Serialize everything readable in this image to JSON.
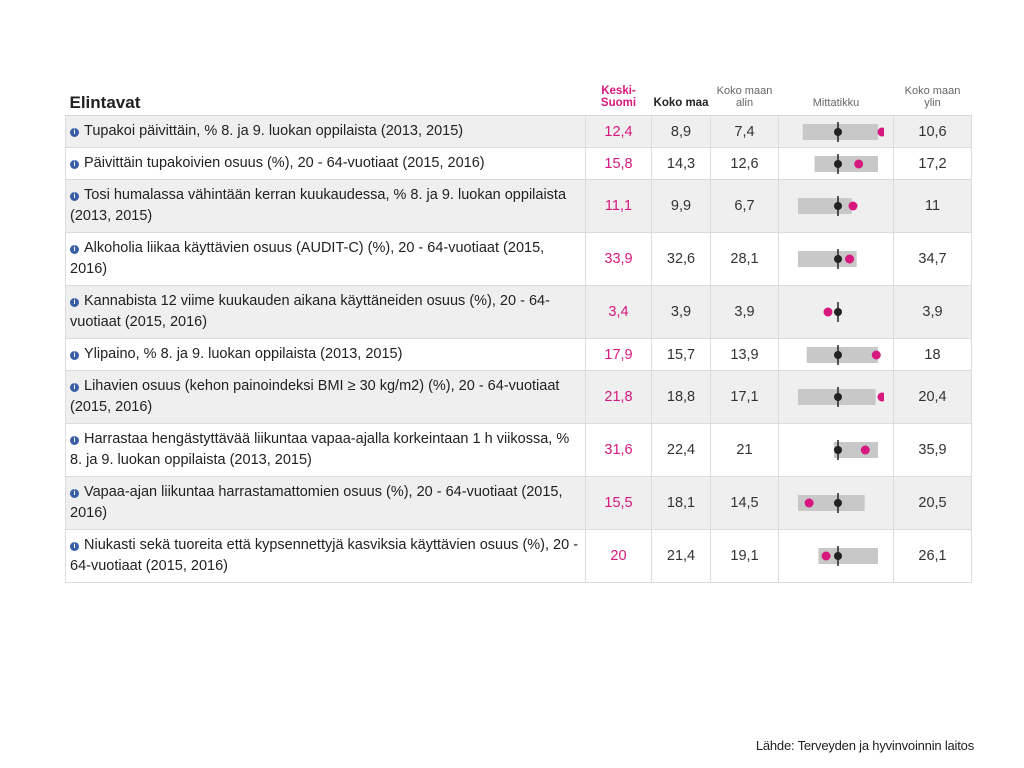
{
  "table": {
    "title": "Elintavat",
    "headers": {
      "region": "Keski-Suomi",
      "country": "Koko maa",
      "min": "Koko maan alin",
      "gauge": "Mittatikku",
      "max": "Koko maan ylin"
    },
    "info_icon": "info-icon"
  },
  "colors": {
    "region": "#d6187f",
    "country": "#222222",
    "gauge_bar": "#c8c8c8"
  },
  "chart_data": {
    "type": "table",
    "title": "Elintavat",
    "columns": [
      "Keski-Suomi",
      "Koko maa",
      "Koko maan alin",
      "Mittatikku",
      "Koko maan ylin"
    ],
    "rows": [
      {
        "label": "Tupakoi päivittäin, % 8. ja 9. luokan oppilaista (2013, 2015)",
        "region": "12,4",
        "country": "8,9",
        "min": "7,4",
        "max": "10,6",
        "region_v": 12.4,
        "country_v": 8.9,
        "min_v": 7.4,
        "max_v": 10.6
      },
      {
        "label": "Päivittäin tupakoivien osuus (%), 20 - 64-vuotiaat (2015, 2016)",
        "region": "15,8",
        "country": "14,3",
        "min": "12,6",
        "max": "17,2",
        "region_v": 15.8,
        "country_v": 14.3,
        "min_v": 12.6,
        "max_v": 17.2
      },
      {
        "label": "Tosi humalassa vähintään kerran kuukaudessa, % 8. ja 9. luokan oppilaista (2013, 2015)",
        "region": "11,1",
        "country": "9,9",
        "min": "6,7",
        "max": "11",
        "region_v": 11.1,
        "country_v": 9.9,
        "min_v": 6.7,
        "max_v": 11
      },
      {
        "label": "Alkoholia liikaa käyttävien osuus (AUDIT-C) (%), 20 - 64-vuotiaat (2015, 2016)",
        "region": "33,9",
        "country": "32,6",
        "min": "28,1",
        "max": "34,7",
        "region_v": 33.9,
        "country_v": 32.6,
        "min_v": 28.1,
        "max_v": 34.7
      },
      {
        "label": "Kannabista 12 viime kuukauden aikana käyttäneiden osuus (%), 20 - 64-vuotiaat (2015, 2016)",
        "region": "3,4",
        "country": "3,9",
        "min": "3,9",
        "max": "3,9",
        "region_v": 3.4,
        "country_v": 3.9,
        "min_v": 3.9,
        "max_v": 3.9
      },
      {
        "label": "Ylipaino, % 8. ja 9. luokan oppilaista (2013, 2015)",
        "region": "17,9",
        "country": "15,7",
        "min": "13,9",
        "max": "18",
        "region_v": 17.9,
        "country_v": 15.7,
        "min_v": 13.9,
        "max_v": 18
      },
      {
        "label": "Lihavien osuus (kehon painoindeksi BMI ≥ 30 kg/m2) (%), 20 - 64-vuotiaat (2015, 2016)",
        "region": "21,8",
        "country": "18,8",
        "min": "17,1",
        "max": "20,4",
        "region_v": 21.8,
        "country_v": 18.8,
        "min_v": 17.1,
        "max_v": 20.4
      },
      {
        "label": "Harrastaa hengästyttävää liikuntaa vapaa-ajalla korkeintaan 1 h viikossa, % 8. ja 9. luokan oppilaista (2013, 2015)",
        "region": "31,6",
        "country": "22,4",
        "min": "21",
        "max": "35,9",
        "region_v": 31.6,
        "country_v": 22.4,
        "min_v": 21,
        "max_v": 35.9
      },
      {
        "label": "Vapaa-ajan liikuntaa harrastamattomien osuus (%), 20 - 64-vuotiaat (2015, 2016)",
        "region": "15,5",
        "country": "18,1",
        "min": "14,5",
        "max": "20,5",
        "region_v": 15.5,
        "country_v": 18.1,
        "min_v": 14.5,
        "max_v": 20.5
      },
      {
        "label": "Niukasti sekä tuoreita että kypsennettyjä kasviksia käyttävien osuus (%), 20 - 64-vuotiaat (2015, 2016)",
        "region": "20",
        "country": "21,4",
        "min": "19,1",
        "max": "26,1",
        "region_v": 20,
        "country_v": 21.4,
        "min_v": 19.1,
        "max_v": 26.1
      }
    ]
  },
  "source": "Lähde: Terveyden ja hyvinvoinnin laitos"
}
